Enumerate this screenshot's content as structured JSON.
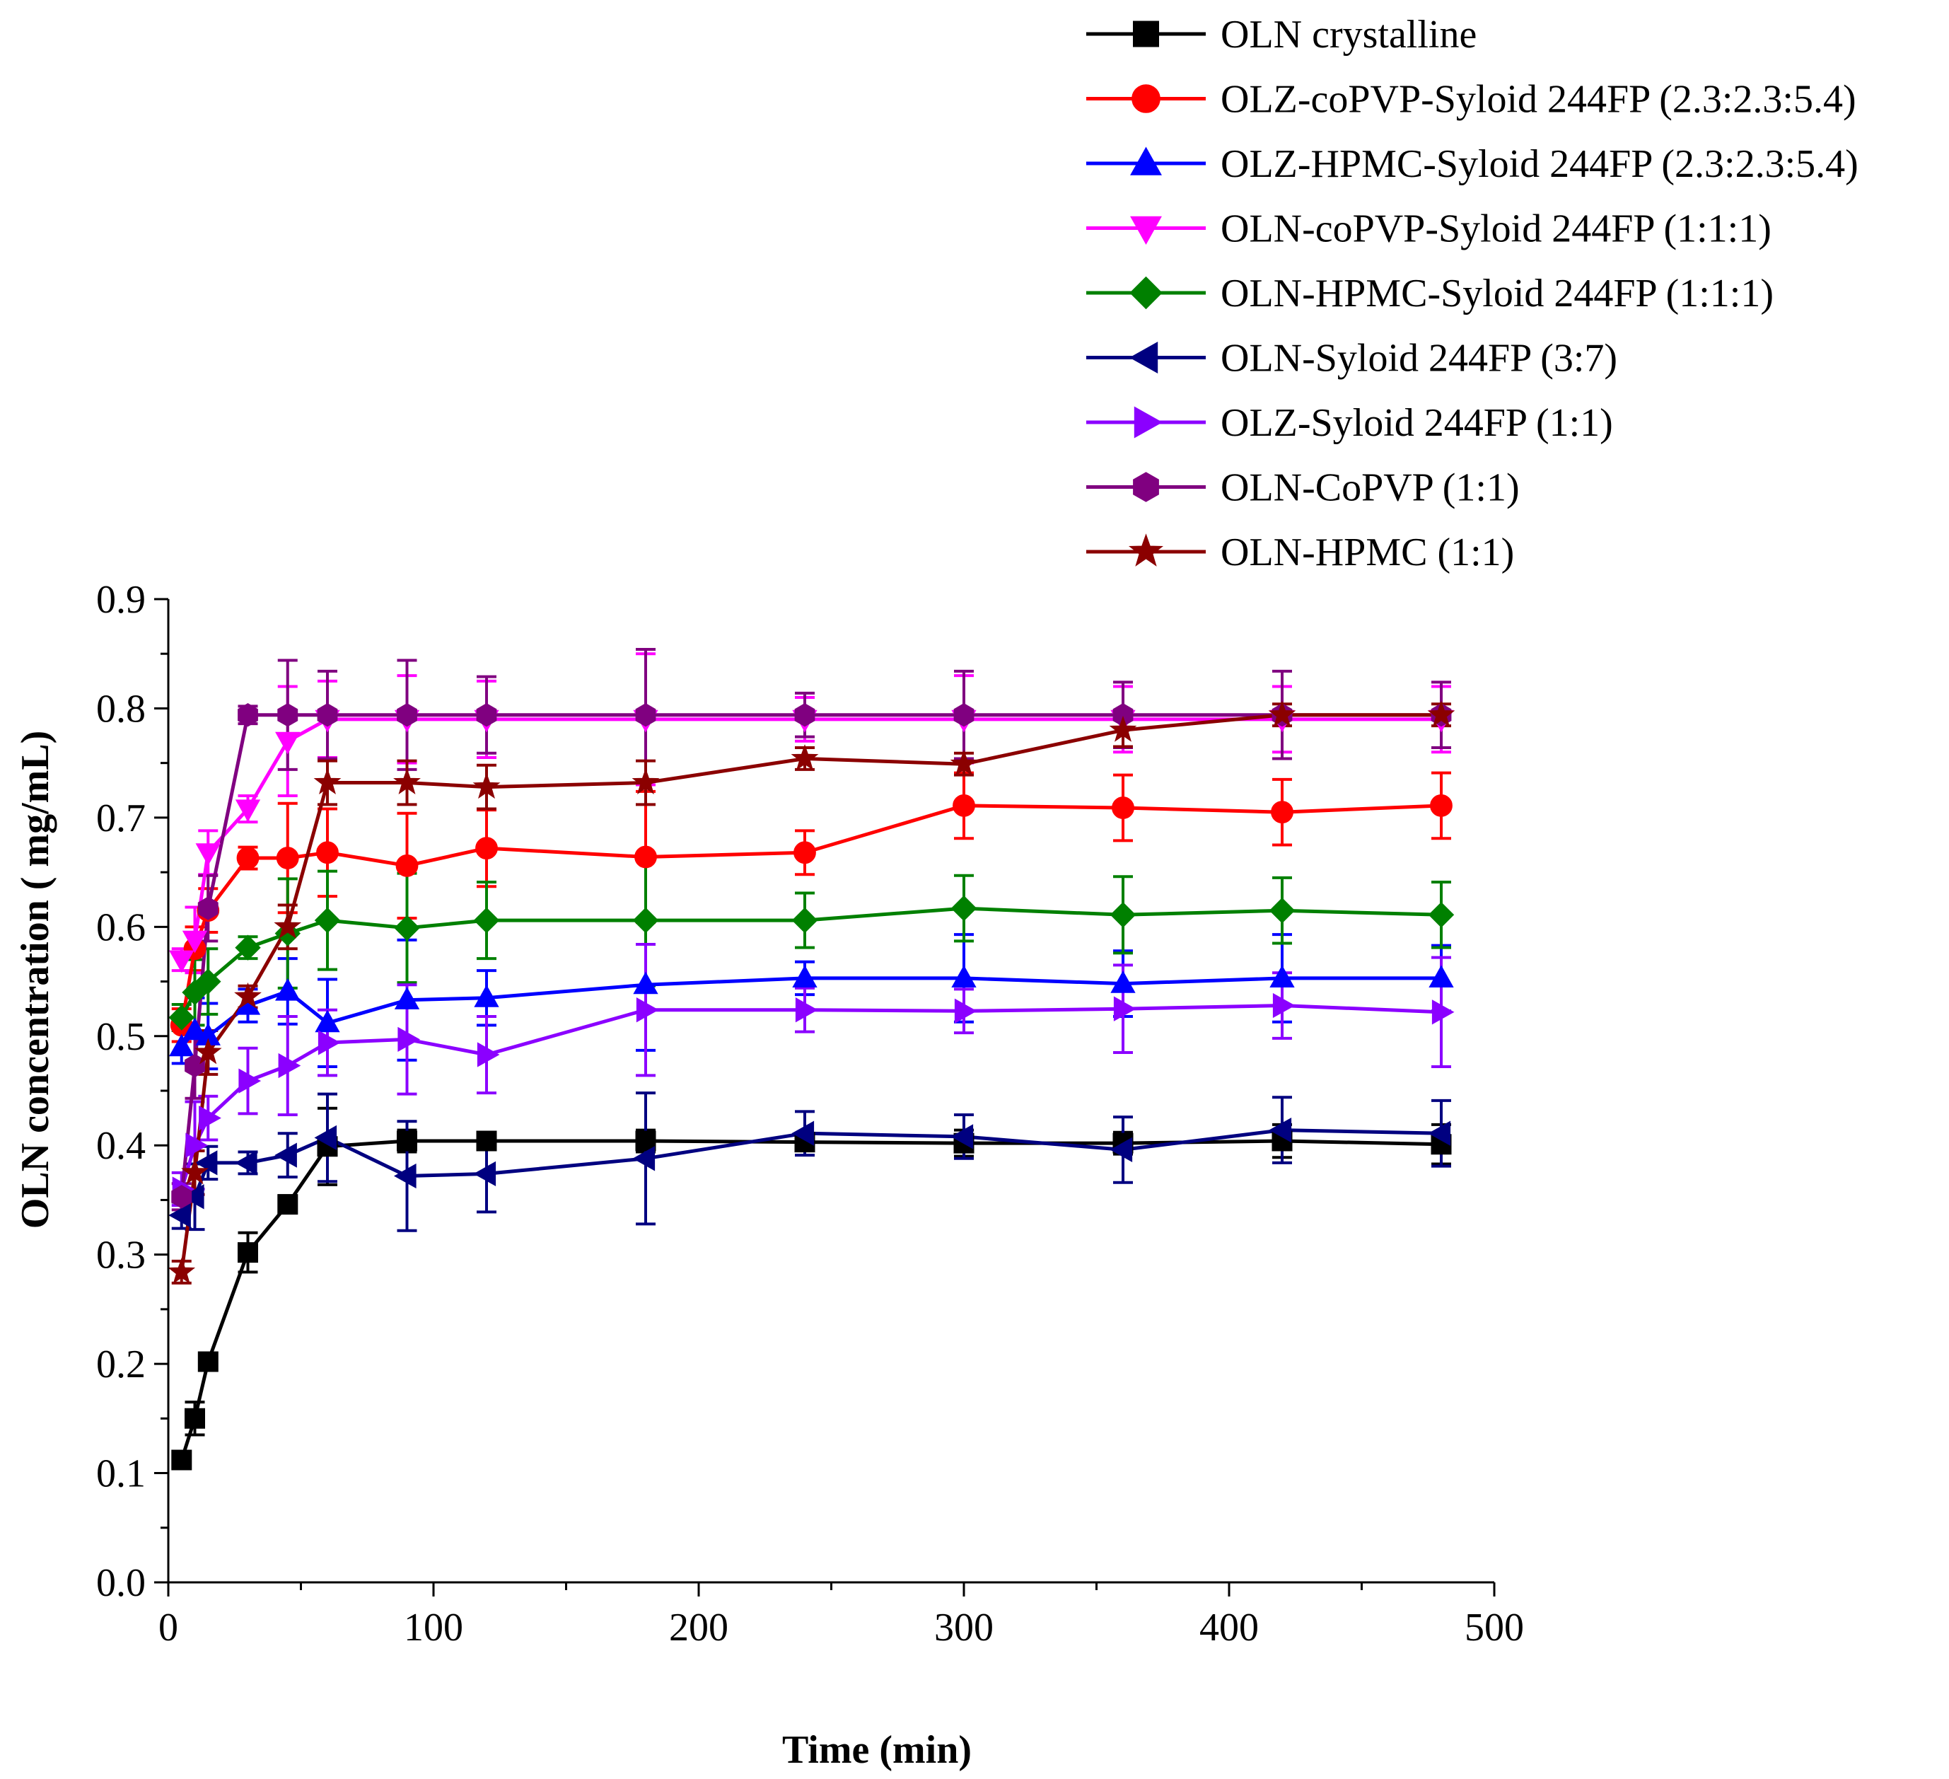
{
  "chart_data": {
    "type": "line",
    "title": "",
    "xlabel": "Time (min)",
    "ylabel": "OLN concentration ( mg/mL)",
    "xlim": [
      0,
      500
    ],
    "ylim": [
      0.0,
      0.9
    ],
    "xticks": [
      0,
      100,
      200,
      300,
      400,
      500
    ],
    "xtick_labels": [
      "0",
      "100",
      "200",
      "300",
      "400",
      "500"
    ],
    "yticks": [
      0.0,
      0.1,
      0.2,
      0.3,
      0.4,
      0.5,
      0.6,
      0.7,
      0.8,
      0.9
    ],
    "ytick_labels": [
      "0.0",
      "0.1",
      "0.2",
      "0.3",
      "0.4",
      "0.5",
      "0.6",
      "0.7",
      "0.8",
      "0.9"
    ],
    "grid": false,
    "legend_position": "top-right, above plot",
    "x": [
      5,
      10,
      15,
      30,
      45,
      60,
      90,
      120,
      180,
      240,
      300,
      360,
      420,
      480
    ],
    "series": [
      {
        "name": "OLN crystalline",
        "color": "#000000",
        "marker": "square",
        "values": [
          0.112,
          0.15,
          0.202,
          0.302,
          0.346,
          0.399,
          0.404,
          0.404,
          0.404,
          0.403,
          0.402,
          0.402,
          0.404,
          0.401
        ],
        "errors": [
          0.008,
          0.015,
          0.008,
          0.018,
          0.008,
          0.035,
          0.01,
          0.008,
          0.01,
          0.008,
          0.012,
          0.01,
          0.015,
          0.018
        ]
      },
      {
        "name": "OLZ-coPVP-Syloid 244FP (2.3:2.3:5.4)",
        "color": "#ff0000",
        "marker": "circle",
        "values": [
          0.51,
          0.58,
          0.615,
          0.663,
          0.663,
          0.668,
          0.656,
          0.672,
          0.664,
          0.668,
          0.711,
          0.709,
          0.705,
          0.711
        ],
        "errors": [
          0.015,
          0.02,
          0.02,
          0.01,
          0.05,
          0.04,
          0.048,
          0.035,
          0.06,
          0.02,
          0.03,
          0.03,
          0.03,
          0.03
        ]
      },
      {
        "name": "OLZ-HPMC-Syloid 244FP (2.3:2.3:5.4)",
        "color": "#0000ff",
        "marker": "triangle-up",
        "values": [
          0.49,
          0.505,
          0.5,
          0.528,
          0.541,
          0.512,
          0.533,
          0.535,
          0.547,
          0.553,
          0.553,
          0.548,
          0.553,
          0.553
        ],
        "errors": [
          0.015,
          0.03,
          0.03,
          0.015,
          0.03,
          0.04,
          0.055,
          0.025,
          0.06,
          0.015,
          0.04,
          0.03,
          0.04,
          0.03
        ]
      },
      {
        "name": "OLN-coPVP-Syloid 244FP (1:1:1)",
        "color": "#ff00ff",
        "marker": "triangle-down",
        "values": [
          0.57,
          0.588,
          0.668,
          0.708,
          0.77,
          0.79,
          0.79,
          0.79,
          0.79,
          0.79,
          0.79,
          0.79,
          0.79,
          0.79
        ],
        "errors": [
          0.01,
          0.03,
          0.02,
          0.012,
          0.05,
          0.035,
          0.04,
          0.035,
          0.06,
          0.02,
          0.04,
          0.03,
          0.03,
          0.03
        ]
      },
      {
        "name": "OLN-HPMC-Syloid 244FP (1:1:1)",
        "color": "#008000",
        "marker": "diamond",
        "values": [
          0.517,
          0.54,
          0.55,
          0.581,
          0.594,
          0.606,
          0.599,
          0.606,
          0.606,
          0.606,
          0.617,
          0.611,
          0.615,
          0.611
        ],
        "errors": [
          0.012,
          0.03,
          0.03,
          0.01,
          0.05,
          0.045,
          0.05,
          0.035,
          0.06,
          0.025,
          0.03,
          0.035,
          0.03,
          0.03
        ]
      },
      {
        "name": "OLN-Syloid 244FP (3:7)",
        "color": "#000080",
        "marker": "triangle-left",
        "values": [
          0.336,
          0.353,
          0.384,
          0.384,
          0.391,
          0.407,
          0.372,
          0.374,
          0.388,
          0.411,
          0.408,
          0.396,
          0.414,
          0.411
        ],
        "errors": [
          0.012,
          0.03,
          0.015,
          0.01,
          0.02,
          0.04,
          0.05,
          0.035,
          0.06,
          0.02,
          0.02,
          0.03,
          0.03,
          0.03
        ]
      },
      {
        "name": "OLZ-Syloid 244FP (1:1)",
        "color": "#8b00ff",
        "marker": "triangle-right",
        "values": [
          0.36,
          0.4,
          0.425,
          0.459,
          0.473,
          0.494,
          0.497,
          0.483,
          0.524,
          0.524,
          0.523,
          0.525,
          0.528,
          0.522
        ],
        "errors": [
          0.015,
          0.04,
          0.02,
          0.03,
          0.045,
          0.03,
          0.05,
          0.035,
          0.06,
          0.02,
          0.02,
          0.04,
          0.03,
          0.05
        ]
      },
      {
        "name": "OLN-CoPVP (1:1)",
        "color": "#800080",
        "marker": "hexagon",
        "values": [
          0.353,
          0.473,
          0.617,
          0.794,
          0.794,
          0.794,
          0.794,
          0.794,
          0.794,
          0.794,
          0.794,
          0.794,
          0.794,
          0.794
        ],
        "errors": [
          0.012,
          0.03,
          0.03,
          0.008,
          0.05,
          0.04,
          0.05,
          0.035,
          0.06,
          0.02,
          0.04,
          0.03,
          0.04,
          0.03
        ]
      },
      {
        "name": "OLN-HPMC (1:1)",
        "color": "#8b0000",
        "marker": "star",
        "values": [
          0.284,
          0.375,
          0.485,
          0.536,
          0.6,
          0.732,
          0.732,
          0.728,
          0.732,
          0.754,
          0.749,
          0.78,
          0.794,
          0.794
        ],
        "errors": [
          0.01,
          0.02,
          0.02,
          0.01,
          0.02,
          0.02,
          0.02,
          0.02,
          0.02,
          0.01,
          0.01,
          0.015,
          0.01,
          0.01
        ]
      }
    ]
  }
}
